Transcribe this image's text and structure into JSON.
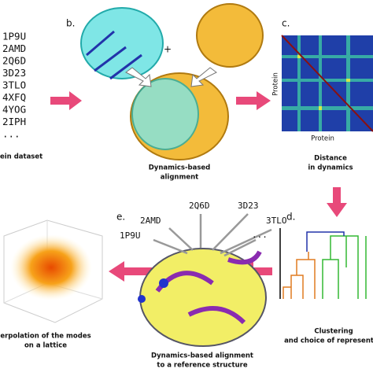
{
  "dataset": {
    "proteins": [
      "1P9U",
      "2AMD",
      "2Q6D",
      "3D23",
      "3TLO",
      "4XFQ",
      "4YOG",
      "2IPH",
      "..."
    ],
    "caption": "ein dataset"
  },
  "panel_b": {
    "letter": "b.",
    "plus": "+",
    "caption": [
      "Dynamics-based",
      "alignment"
    ]
  },
  "panel_c": {
    "letter": "c.",
    "y_label": "Protein",
    "x_label": "Protein",
    "caption": [
      "Distance",
      "in dynamics"
    ]
  },
  "panel_d": {
    "letter": "d.",
    "caption": [
      "Clustering",
      "and choice of represent"
    ]
  },
  "panel_e": {
    "letter": "e.",
    "inputs": [
      "1P9U",
      "2AMD",
      "2Q6D",
      "3D23",
      "3TLO",
      "..."
    ],
    "caption": [
      "Dynamics-based alignment",
      "to a reference structure"
    ]
  },
  "panel_f": {
    "caption": [
      "erpolation of the modes",
      "on a lattice"
    ]
  }
}
